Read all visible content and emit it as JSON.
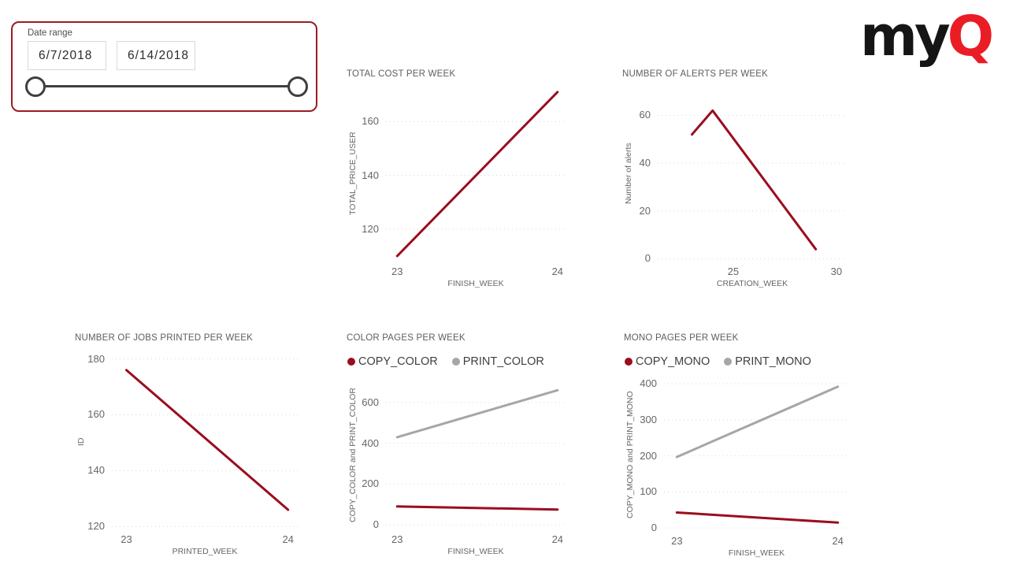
{
  "slicer": {
    "label": "Date range",
    "start_date": "6/7/2018",
    "end_date": "6/14/2018"
  },
  "logo": {
    "text_black": "my",
    "text_red": "Q"
  },
  "colors": {
    "series_red": "#9b0d1e",
    "series_gray": "#a6a6a6",
    "grid": "#d9d9d9",
    "slicer_border": "#9c1b24",
    "logo_red": "#ea1d25",
    "title_gray": "#605e5c",
    "tick_gray": "#666666"
  },
  "chart_data": [
    {
      "type": "line",
      "title": "TOTAL COST PER WEEK",
      "xlabel": "FINISH_WEEK",
      "ylabel": "TOTAL_PRICE_USER",
      "xlim": [
        22.93,
        24.05
      ],
      "ylim": [
        108.5,
        173
      ],
      "xticks": [
        23,
        24
      ],
      "yticks": [
        120,
        140,
        160
      ],
      "grid": "dotted-horizontal",
      "legend": false,
      "series": [
        {
          "name": "TOTAL_PRICE_USER",
          "color": "red",
          "x": [
            23,
            24
          ],
          "y": [
            110,
            171
          ]
        }
      ]
    },
    {
      "type": "line",
      "title": "NUMBER OF ALERTS PER WEEK",
      "xlabel": "CREATION_WEEK",
      "ylabel": "Number of alerts",
      "xlim": [
        21.34,
        30.5
      ],
      "ylim": [
        -0.5,
        72
      ],
      "xticks": [
        25,
        30
      ],
      "yticks": [
        0,
        20,
        40,
        60
      ],
      "grid": "dotted-horizontal",
      "legend": false,
      "series": [
        {
          "name": "Number of alerts",
          "color": "red",
          "x": [
            23,
            24,
            29
          ],
          "y": [
            52,
            62,
            4
          ]
        }
      ]
    },
    {
      "type": "line",
      "title": "NUMBER OF JOBS PRINTED PER WEEK",
      "xlabel": "PRINTED_WEEK",
      "ylabel": "ID",
      "xlim": [
        22.91,
        24.06
      ],
      "ylim": [
        119.5,
        181
      ],
      "xticks": [
        23,
        24
      ],
      "yticks": [
        120,
        140,
        160,
        180
      ],
      "grid": "dotted-horizontal",
      "legend": false,
      "series": [
        {
          "name": "ID",
          "color": "red",
          "x": [
            23,
            24
          ],
          "y": [
            176,
            126
          ]
        }
      ]
    },
    {
      "type": "line",
      "title": "COLOR PAGES PER WEEK",
      "xlabel": "FINISH_WEEK",
      "ylabel": "COPY_COLOR and PRINT_COLOR",
      "xlim": [
        22.93,
        24.05
      ],
      "ylim": [
        -15,
        700
      ],
      "xticks": [
        23,
        24
      ],
      "yticks": [
        0,
        200,
        400,
        600
      ],
      "grid": "dotted-horizontal",
      "legend": true,
      "legend_position": "top-left",
      "series": [
        {
          "name": "COPY_COLOR",
          "color": "red",
          "x": [
            23,
            24
          ],
          "y": [
            90,
            75
          ]
        },
        {
          "name": "PRINT_COLOR",
          "color": "gray",
          "x": [
            23,
            24
          ],
          "y": [
            430,
            660
          ]
        }
      ]
    },
    {
      "type": "line",
      "title": "MONO PAGES PER WEEK",
      "xlabel": "FINISH_WEEK",
      "ylabel": "COPY_MONO and PRINT_MONO",
      "xlim": [
        22.92,
        24.07
      ],
      "ylim": [
        -4,
        409
      ],
      "xticks": [
        23,
        24
      ],
      "yticks": [
        0,
        100,
        200,
        300,
        400
      ],
      "grid": "dotted-horizontal",
      "legend": true,
      "legend_position": "top-left",
      "series": [
        {
          "name": "COPY_MONO",
          "color": "red",
          "x": [
            23,
            24
          ],
          "y": [
            43,
            15
          ]
        },
        {
          "name": "PRINT_MONO",
          "color": "gray",
          "x": [
            23,
            24
          ],
          "y": [
            197,
            392
          ]
        }
      ]
    }
  ]
}
